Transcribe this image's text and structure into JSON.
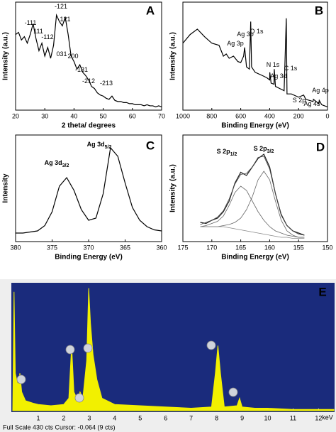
{
  "chart_data": [
    {
      "type": "line",
      "panel_label": "A",
      "x_label": "2 theta/ degrees",
      "y_label": "Intensity (a.u.)",
      "xlim": [
        20,
        70
      ],
      "xticks": [
        20,
        30,
        40,
        50,
        60,
        70
      ],
      "ylim": [
        0,
        100
      ],
      "x": [
        20,
        21,
        22,
        23,
        24,
        25,
        26,
        27,
        28,
        29,
        30,
        31,
        32,
        33,
        34,
        35,
        36,
        37,
        38,
        39,
        40,
        41,
        42,
        43,
        44,
        45,
        46,
        47,
        48,
        49,
        50,
        51,
        52,
        53,
        54,
        55,
        56,
        57,
        58,
        59,
        60,
        61,
        62,
        63,
        64,
        65,
        66,
        67,
        68,
        69,
        70
      ],
      "series": [
        {
          "color": "#000000",
          "values": [
            70,
            72,
            65,
            68,
            62,
            70,
            80,
            66,
            55,
            62,
            50,
            58,
            48,
            60,
            88,
            82,
            78,
            86,
            70,
            50,
            45,
            38,
            42,
            35,
            32,
            28,
            22,
            20,
            16,
            14,
            13,
            11,
            10,
            13,
            9,
            8,
            8,
            7,
            7,
            6,
            6,
            5,
            5,
            5,
            4,
            5,
            4,
            4,
            3,
            4,
            3
          ]
        }
      ],
      "annotations": [
        {
          "text": "-111"
        },
        {
          "text": "111"
        },
        {
          "text": "-112"
        },
        {
          "text": "-121"
        },
        {
          "text": "121"
        },
        {
          "text": "031"
        },
        {
          "text": "200"
        },
        {
          "text": "-131"
        },
        {
          "text": "-212"
        },
        {
          "text": "-213"
        }
      ]
    },
    {
      "type": "line",
      "panel_label": "B",
      "x_label": "Binding Energy (eV)",
      "y_label": "Intensity (a.u.)",
      "xlim": [
        1000,
        0
      ],
      "xticks": [
        1000,
        800,
        600,
        400,
        200,
        0
      ],
      "ylim": [
        0,
        100
      ],
      "x": [
        1000,
        950,
        900,
        850,
        800,
        750,
        720,
        700,
        680,
        650,
        620,
        600,
        580,
        573,
        560,
        540,
        531,
        525,
        500,
        450,
        420,
        400,
        399,
        390,
        370,
        368,
        360,
        330,
        300,
        285,
        280,
        250,
        200,
        165,
        150,
        100,
        97,
        60,
        57,
        40,
        20,
        0
      ],
      "series": [
        {
          "color": "#000000",
          "values": [
            62,
            70,
            75,
            68,
            62,
            60,
            50,
            52,
            48,
            50,
            45,
            44,
            50,
            58,
            40,
            38,
            82,
            40,
            35,
            32,
            30,
            28,
            35,
            25,
            24,
            38,
            22,
            20,
            18,
            85,
            15,
            15,
            12,
            14,
            10,
            8,
            10,
            6,
            9,
            5,
            4,
            3
          ]
        }
      ],
      "annotations": [
        {
          "text": "Ag 3p"
        },
        {
          "text": "Ag 3p"
        },
        {
          "text": "O 1s"
        },
        {
          "text": "N 1s"
        },
        {
          "text": "Ag 3d"
        },
        {
          "text": "C 1s"
        },
        {
          "text": "S 2p"
        },
        {
          "text": "Ag 4s"
        },
        {
          "text": "Ag 4p"
        }
      ]
    },
    {
      "type": "line",
      "panel_label": "C",
      "x_label": "Binding Energy (eV)",
      "y_label": "Intensity",
      "xlim": [
        380,
        360
      ],
      "xticks": [
        380,
        375,
        370,
        365,
        360
      ],
      "ylim": [
        0,
        100
      ],
      "x": [
        380,
        379,
        378,
        377,
        376,
        375,
        374,
        373,
        372,
        371,
        370,
        369,
        368,
        367,
        366,
        365,
        364,
        363,
        362,
        361,
        360
      ],
      "series": [
        {
          "color": "#000000",
          "values": [
            8,
            8,
            9,
            10,
            15,
            28,
            52,
            60,
            48,
            30,
            20,
            22,
            45,
            88,
            80,
            55,
            32,
            20,
            14,
            11,
            10
          ]
        }
      ],
      "annotations": [
        {
          "text": "Ag 3d",
          "sub": "3/2"
        },
        {
          "text": "Ag 3d",
          "sub": "5/2"
        }
      ]
    },
    {
      "type": "line",
      "panel_label": "D",
      "x_label": "Binding Energy (eV)",
      "y_label": "Intensity (a.u.)",
      "xlim": [
        175,
        150
      ],
      "xticks": [
        175,
        170,
        165,
        160,
        155,
        150
      ],
      "ylim": [
        0,
        100
      ],
      "x": [
        172,
        171,
        170,
        169,
        168,
        167,
        166,
        165,
        164,
        163,
        162,
        161,
        160,
        159,
        158,
        157,
        156,
        155,
        154
      ],
      "series": [
        {
          "color": "#222222",
          "values": [
            18,
            17,
            20,
            22,
            28,
            38,
            55,
            65,
            62,
            70,
            78,
            82,
            70,
            45,
            25,
            15,
            10,
            8,
            6
          ]
        },
        {
          "color": "#444444",
          "values": [
            16,
            18,
            20,
            23,
            29,
            40,
            54,
            63,
            64,
            70,
            79,
            80,
            68,
            45,
            26,
            15,
            10,
            7,
            6
          ]
        },
        {
          "color": "#666666",
          "values": [
            14,
            15,
            17,
            19,
            24,
            34,
            46,
            52,
            48,
            38,
            28,
            20,
            14,
            10,
            8,
            6,
            5,
            4,
            4
          ]
        },
        {
          "color": "#666666",
          "values": [
            14,
            14,
            14,
            14,
            15,
            16,
            18,
            22,
            30,
            42,
            58,
            66,
            58,
            38,
            20,
            10,
            6,
            4,
            4
          ]
        },
        {
          "color": "#888888",
          "values": [
            14,
            14,
            14,
            14,
            14,
            13,
            12,
            11,
            10,
            9,
            8,
            7,
            6,
            5,
            4,
            4,
            3,
            3,
            3
          ]
        }
      ],
      "annotations": [
        {
          "text": "S 2p",
          "sub": "1/2"
        },
        {
          "text": "S 2p",
          "sub": "3/2"
        }
      ]
    },
    {
      "type": "area",
      "panel_label": "E",
      "x_unit": "keV",
      "status": "Full Scale 430 cts Cursor: -0.064  (9 cts)",
      "xlim": [
        0,
        12.6
      ],
      "xticks": [
        1,
        2,
        3,
        4,
        5,
        6,
        7,
        8,
        9,
        10,
        11,
        12
      ],
      "ylim": [
        0,
        100
      ],
      "x": [
        0,
        0.05,
        0.1,
        0.2,
        0.28,
        0.35,
        0.5,
        0.8,
        1,
        1.5,
        2,
        2.2,
        2.31,
        2.4,
        2.55,
        2.64,
        2.75,
        2.9,
        2.98,
        3.05,
        3.15,
        3.3,
        3.5,
        4,
        5,
        6,
        7,
        7.8,
        7.95,
        8.05,
        8.15,
        8.3,
        8.8,
        8.9,
        9,
        9.5,
        10,
        11,
        12,
        12.6
      ],
      "series": [
        {
          "color": "#f2f000",
          "values": [
            0,
            95,
            30,
            20,
            30,
            15,
            8,
            6,
            5,
            4,
            5,
            10,
            52,
            15,
            8,
            15,
            10,
            40,
            98,
            70,
            45,
            25,
            10,
            5,
            4,
            3,
            2,
            3,
            30,
            52,
            30,
            3,
            4,
            10,
            3,
            2,
            2,
            1,
            1,
            1
          ]
        }
      ]
    }
  ]
}
